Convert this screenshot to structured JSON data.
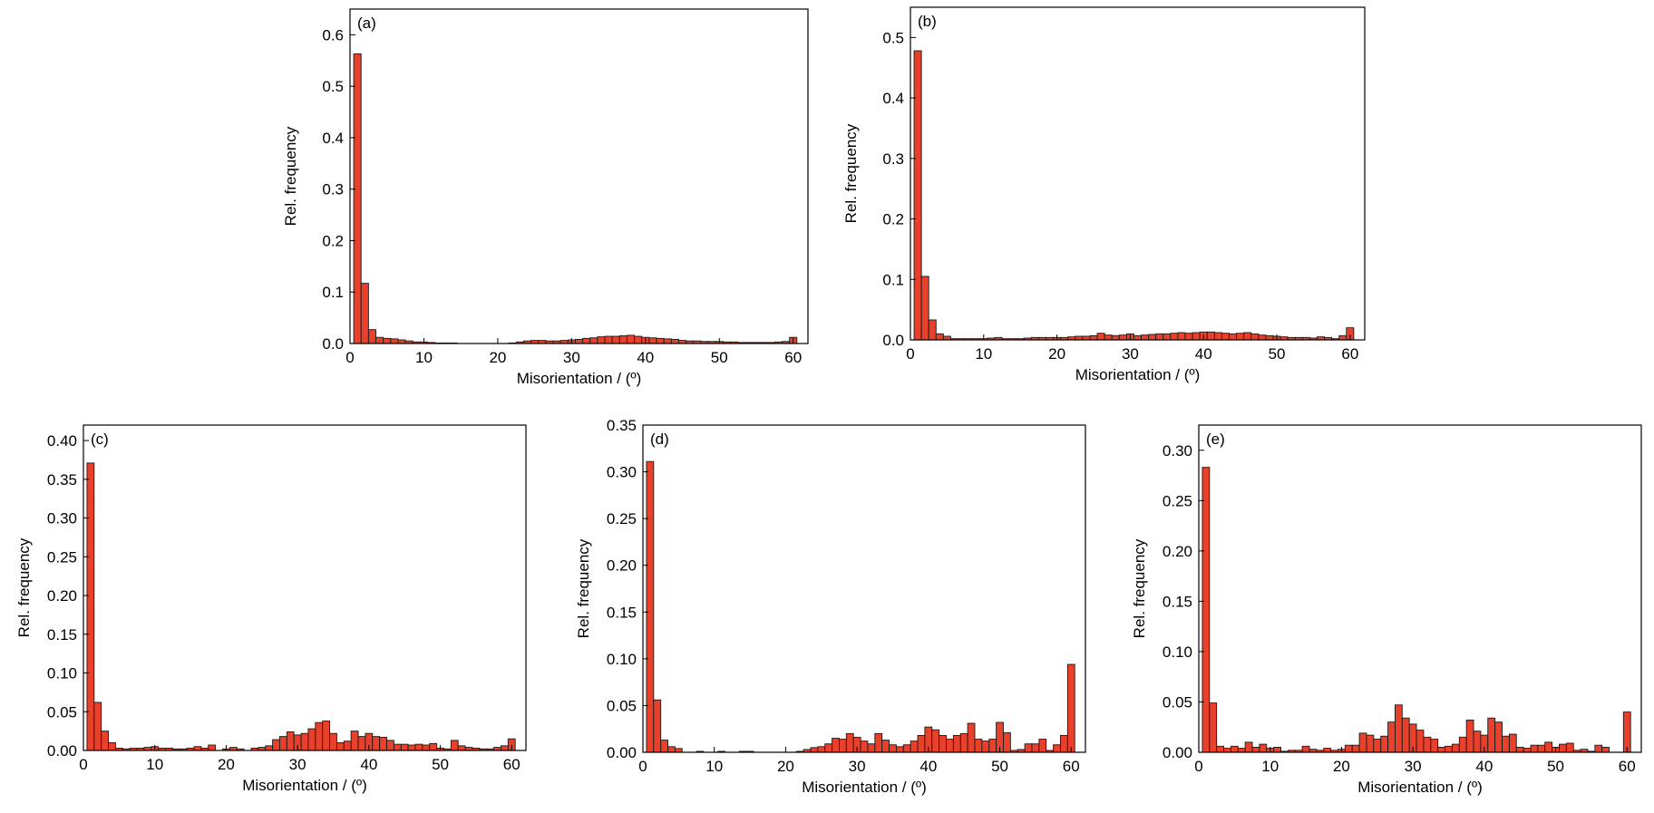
{
  "colors": {
    "bar_fill": "#e8402a",
    "bar_stroke": "#1a1a1a",
    "axis": "#000000"
  },
  "chart_data": [
    {
      "type": "bar",
      "panel_label": "(a)",
      "title": "",
      "xlabel": "Misorientation / (º)",
      "ylabel": "Rel. frequency",
      "xlim": [
        0,
        62
      ],
      "ylim": [
        0,
        0.65
      ],
      "xticks": [
        0,
        10,
        20,
        30,
        40,
        50,
        60
      ],
      "yticks": [
        0.0,
        0.1,
        0.2,
        0.3,
        0.4,
        0.5,
        0.6
      ],
      "ytick_labels": [
        "0.0",
        "0.1",
        "0.2",
        "0.3",
        "0.4",
        "0.5",
        "0.6"
      ],
      "x": [
        1,
        2,
        3,
        4,
        5,
        6,
        7,
        8,
        9,
        10,
        11,
        12,
        13,
        14,
        15,
        16,
        17,
        18,
        19,
        20,
        21,
        22,
        23,
        24,
        25,
        26,
        27,
        28,
        29,
        30,
        31,
        32,
        33,
        34,
        35,
        36,
        37,
        38,
        39,
        40,
        41,
        42,
        43,
        44,
        45,
        46,
        47,
        48,
        49,
        50,
        51,
        52,
        53,
        54,
        55,
        56,
        57,
        58,
        59,
        60
      ],
      "values": [
        0.563,
        0.117,
        0.027,
        0.012,
        0.01,
        0.009,
        0.007,
        0.005,
        0.003,
        0.003,
        0.002,
        0.001,
        0.001,
        0.001,
        0.0,
        0.0,
        0.0,
        0.0,
        0.0,
        0.0,
        0.0,
        0.001,
        0.003,
        0.005,
        0.006,
        0.006,
        0.005,
        0.005,
        0.006,
        0.007,
        0.008,
        0.01,
        0.011,
        0.013,
        0.014,
        0.014,
        0.015,
        0.016,
        0.014,
        0.012,
        0.011,
        0.01,
        0.009,
        0.008,
        0.006,
        0.005,
        0.005,
        0.004,
        0.004,
        0.004,
        0.003,
        0.003,
        0.002,
        0.002,
        0.002,
        0.002,
        0.002,
        0.003,
        0.004,
        0.012
      ]
    },
    {
      "type": "bar",
      "panel_label": "(b)",
      "title": "",
      "xlabel": "Misorientation / (º)",
      "ylabel": "Rel. frequency",
      "xlim": [
        0,
        62
      ],
      "ylim": [
        0,
        0.55
      ],
      "xticks": [
        0,
        10,
        20,
        30,
        40,
        50,
        60
      ],
      "yticks": [
        0.0,
        0.1,
        0.2,
        0.3,
        0.4,
        0.5
      ],
      "ytick_labels": [
        "0.0",
        "0.1",
        "0.2",
        "0.3",
        "0.4",
        "0.5"
      ],
      "x": [
        1,
        2,
        3,
        4,
        5,
        6,
        7,
        8,
        9,
        10,
        11,
        12,
        13,
        14,
        15,
        16,
        17,
        18,
        19,
        20,
        21,
        22,
        23,
        24,
        25,
        26,
        27,
        28,
        29,
        30,
        31,
        32,
        33,
        34,
        35,
        36,
        37,
        38,
        39,
        40,
        41,
        42,
        43,
        44,
        45,
        46,
        47,
        48,
        49,
        50,
        51,
        52,
        53,
        54,
        55,
        56,
        57,
        58,
        59,
        60
      ],
      "values": [
        0.478,
        0.105,
        0.033,
        0.01,
        0.006,
        0.002,
        0.002,
        0.002,
        0.002,
        0.002,
        0.003,
        0.004,
        0.002,
        0.002,
        0.002,
        0.003,
        0.004,
        0.004,
        0.004,
        0.004,
        0.004,
        0.005,
        0.006,
        0.006,
        0.007,
        0.011,
        0.008,
        0.007,
        0.008,
        0.01,
        0.007,
        0.008,
        0.009,
        0.01,
        0.01,
        0.011,
        0.012,
        0.011,
        0.012,
        0.013,
        0.013,
        0.012,
        0.011,
        0.01,
        0.011,
        0.012,
        0.01,
        0.008,
        0.007,
        0.006,
        0.005,
        0.004,
        0.004,
        0.004,
        0.003,
        0.005,
        0.004,
        0.002,
        0.007,
        0.02
      ]
    },
    {
      "type": "bar",
      "panel_label": "(c)",
      "title": "",
      "xlabel": "Misorientation / (º)",
      "ylabel": "Rel. frequency",
      "xlim": [
        0,
        62
      ],
      "ylim": [
        0,
        0.42
      ],
      "xticks": [
        0,
        10,
        20,
        30,
        40,
        50,
        60
      ],
      "yticks": [
        0.0,
        0.05,
        0.1,
        0.15,
        0.2,
        0.25,
        0.3,
        0.35,
        0.4
      ],
      "ytick_labels": [
        "0.00",
        "0.05",
        "0.10",
        "0.15",
        "0.20",
        "0.25",
        "0.30",
        "0.35",
        "0.40"
      ],
      "x": [
        1,
        2,
        3,
        4,
        5,
        6,
        7,
        8,
        9,
        10,
        11,
        12,
        13,
        14,
        15,
        16,
        17,
        18,
        19,
        20,
        21,
        22,
        23,
        24,
        25,
        26,
        27,
        28,
        29,
        30,
        31,
        32,
        33,
        34,
        35,
        36,
        37,
        38,
        39,
        40,
        41,
        42,
        43,
        44,
        45,
        46,
        47,
        48,
        49,
        50,
        51,
        52,
        53,
        54,
        55,
        56,
        57,
        58,
        59,
        60
      ],
      "values": [
        0.371,
        0.062,
        0.025,
        0.01,
        0.003,
        0.002,
        0.003,
        0.003,
        0.004,
        0.005,
        0.003,
        0.003,
        0.002,
        0.002,
        0.003,
        0.005,
        0.003,
        0.007,
        0.0,
        0.002,
        0.004,
        0.002,
        0.0,
        0.003,
        0.004,
        0.006,
        0.014,
        0.018,
        0.024,
        0.02,
        0.022,
        0.028,
        0.036,
        0.038,
        0.022,
        0.01,
        0.012,
        0.025,
        0.018,
        0.022,
        0.018,
        0.017,
        0.013,
        0.008,
        0.008,
        0.007,
        0.008,
        0.007,
        0.009,
        0.003,
        0.002,
        0.013,
        0.006,
        0.004,
        0.003,
        0.002,
        0.002,
        0.004,
        0.006,
        0.015
      ]
    },
    {
      "type": "bar",
      "panel_label": "(d)",
      "title": "",
      "xlabel": "Misorientation / (º)",
      "ylabel": "Rel. frequency",
      "xlim": [
        0,
        62
      ],
      "ylim": [
        0,
        0.35
      ],
      "xticks": [
        0,
        10,
        20,
        30,
        40,
        50,
        60
      ],
      "yticks": [
        0.0,
        0.05,
        0.1,
        0.15,
        0.2,
        0.25,
        0.3,
        0.35
      ],
      "ytick_labels": [
        "0.00",
        "0.05",
        "0.10",
        "0.15",
        "0.20",
        "0.25",
        "0.30",
        "0.35"
      ],
      "x": [
        1,
        2,
        3,
        4,
        5,
        6,
        7,
        8,
        9,
        10,
        11,
        12,
        13,
        14,
        15,
        16,
        17,
        18,
        19,
        20,
        21,
        22,
        23,
        24,
        25,
        26,
        27,
        28,
        29,
        30,
        31,
        32,
        33,
        34,
        35,
        36,
        37,
        38,
        39,
        40,
        41,
        42,
        43,
        44,
        45,
        46,
        47,
        48,
        49,
        50,
        51,
        52,
        53,
        54,
        55,
        56,
        57,
        58,
        59,
        60
      ],
      "values": [
        0.311,
        0.056,
        0.013,
        0.006,
        0.004,
        0.0,
        0.0,
        0.001,
        0.0,
        0.0,
        0.001,
        0.0,
        0.0,
        0.001,
        0.001,
        0.0,
        0.0,
        0.0,
        0.0,
        0.0,
        0.0,
        0.001,
        0.003,
        0.005,
        0.006,
        0.009,
        0.015,
        0.014,
        0.02,
        0.016,
        0.012,
        0.009,
        0.02,
        0.013,
        0.008,
        0.006,
        0.008,
        0.012,
        0.018,
        0.027,
        0.024,
        0.018,
        0.014,
        0.018,
        0.02,
        0.031,
        0.014,
        0.012,
        0.014,
        0.032,
        0.021,
        0.002,
        0.003,
        0.009,
        0.009,
        0.014,
        0.002,
        0.008,
        0.018,
        0.094
      ]
    },
    {
      "type": "bar",
      "panel_label": "(e)",
      "title": "",
      "xlabel": "Misorientation / (º)",
      "ylabel": "Rel. frequency",
      "xlim": [
        0,
        62
      ],
      "ylim": [
        0,
        0.325
      ],
      "xticks": [
        0,
        10,
        20,
        30,
        40,
        50,
        60
      ],
      "yticks": [
        0.0,
        0.05,
        0.1,
        0.15,
        0.2,
        0.25,
        0.3
      ],
      "ytick_labels": [
        "0.00",
        "0.05",
        "0.10",
        "0.15",
        "0.20",
        "0.25",
        "0.30"
      ],
      "x": [
        1,
        2,
        3,
        4,
        5,
        6,
        7,
        8,
        9,
        10,
        11,
        12,
        13,
        14,
        15,
        16,
        17,
        18,
        19,
        20,
        21,
        22,
        23,
        24,
        25,
        26,
        27,
        28,
        29,
        30,
        31,
        32,
        33,
        34,
        35,
        36,
        37,
        38,
        39,
        40,
        41,
        42,
        43,
        44,
        45,
        46,
        47,
        48,
        49,
        50,
        51,
        52,
        53,
        54,
        55,
        56,
        57,
        58,
        59,
        60
      ],
      "values": [
        0.283,
        0.049,
        0.006,
        0.004,
        0.006,
        0.004,
        0.01,
        0.005,
        0.008,
        0.004,
        0.005,
        0.001,
        0.002,
        0.002,
        0.006,
        0.003,
        0.002,
        0.004,
        0.002,
        0.003,
        0.007,
        0.007,
        0.019,
        0.017,
        0.013,
        0.016,
        0.03,
        0.047,
        0.034,
        0.028,
        0.022,
        0.015,
        0.013,
        0.005,
        0.006,
        0.008,
        0.015,
        0.032,
        0.021,
        0.017,
        0.034,
        0.03,
        0.016,
        0.018,
        0.005,
        0.004,
        0.007,
        0.007,
        0.01,
        0.005,
        0.008,
        0.009,
        0.002,
        0.003,
        0.001,
        0.007,
        0.005,
        0.0,
        0.0,
        0.04
      ]
    }
  ]
}
